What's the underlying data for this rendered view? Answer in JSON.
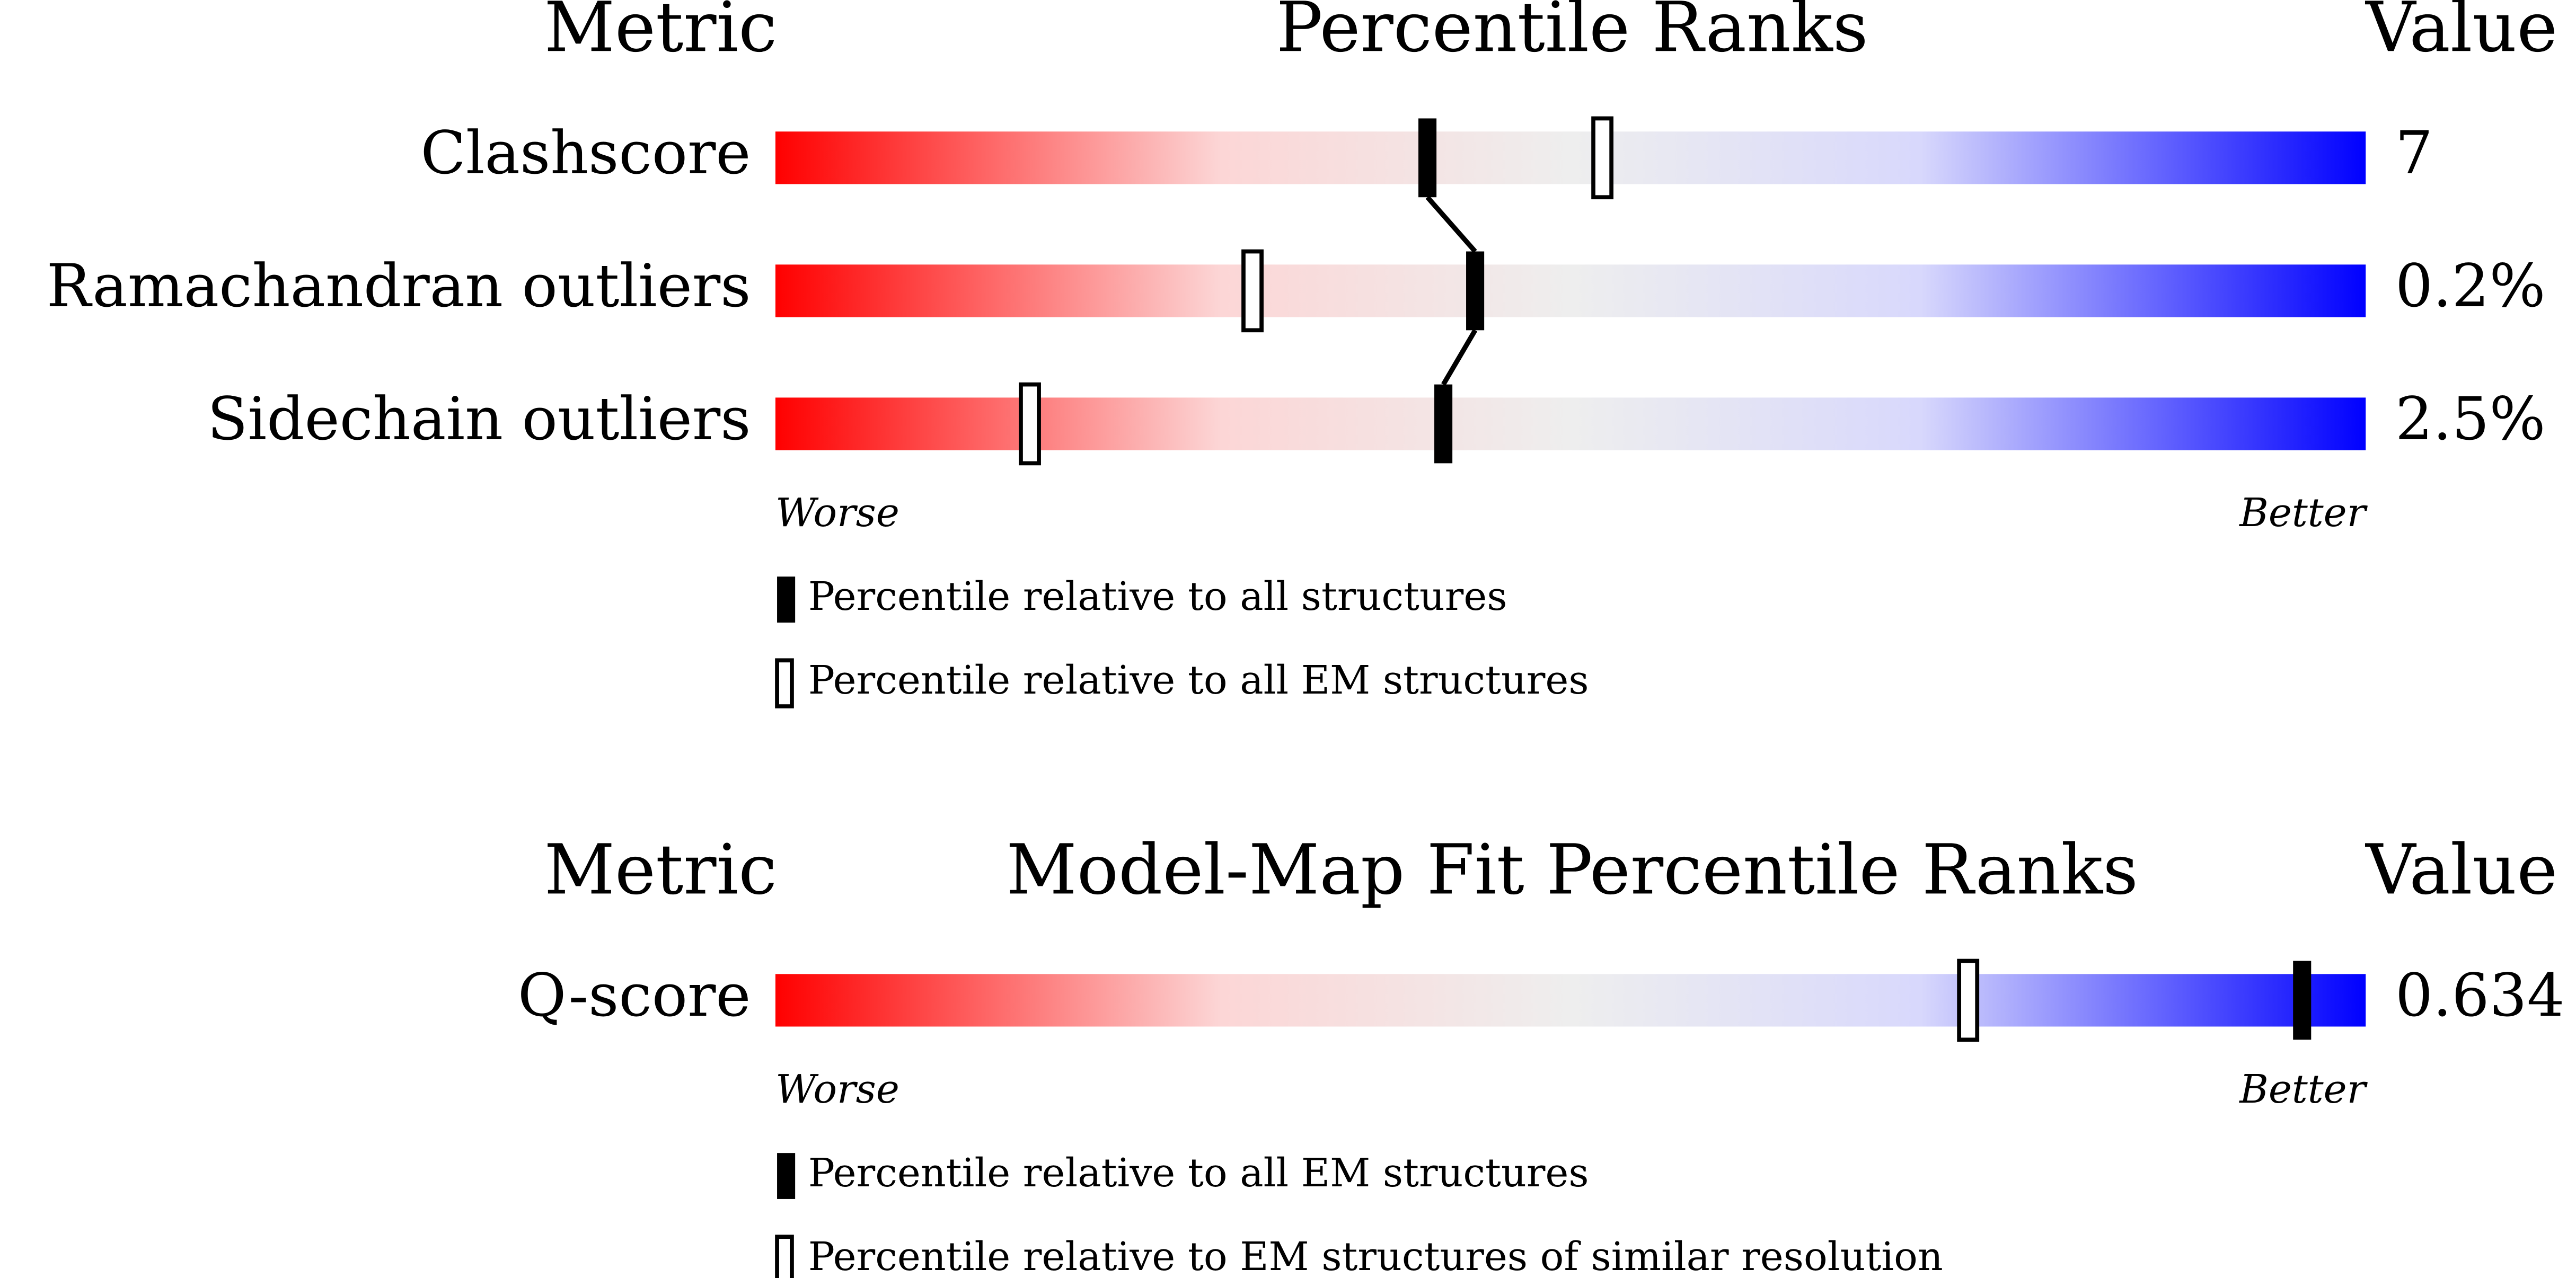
{
  "chart_data": [
    {
      "type": "slider",
      "header_left": "Metric",
      "title": "Percentile Ranks",
      "header_right": "Value",
      "categories": [
        "Clashscore",
        "Ramachandran outliers",
        "Sidechain outliers"
      ],
      "value_labels": [
        "7",
        "0.2%",
        "2.5%"
      ],
      "xlim": [
        0,
        100
      ],
      "low_label": "Worse",
      "high_label": "Better",
      "series": [
        {
          "name": "Percentile relative to all structures",
          "marker": "filled",
          "color": "#000000",
          "values": [
            41,
            44,
            42
          ]
        },
        {
          "name": "Percentile relative to all EM structures",
          "marker": "open",
          "color": "#000000",
          "values": [
            52,
            30,
            16
          ]
        }
      ]
    },
    {
      "type": "slider",
      "header_left": "Metric",
      "title": "Model-Map Fit Percentile Ranks",
      "header_right": "Value",
      "categories": [
        "Q-score"
      ],
      "value_labels": [
        "0.634"
      ],
      "xlim": [
        0,
        100
      ],
      "low_label": "Worse",
      "high_label": "Better",
      "series": [
        {
          "name": "Percentile relative to all EM structures",
          "marker": "filled",
          "color": "#000000",
          "values": [
            96
          ]
        },
        {
          "name": "Percentile relative to EM structures of similar resolution",
          "marker": "open",
          "color": "#000000",
          "values": [
            75
          ]
        }
      ]
    }
  ]
}
